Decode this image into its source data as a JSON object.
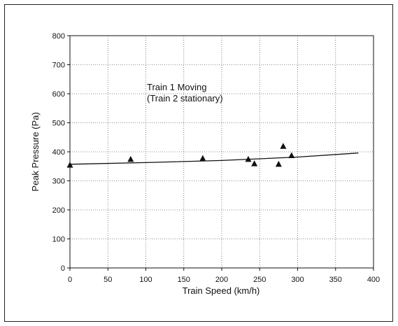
{
  "chart_data": {
    "type": "scatter",
    "xlabel": "Train Speed (km/h)",
    "ylabel": "Peak Pressure (Pa)",
    "xlim": [
      0,
      400
    ],
    "ylim": [
      0,
      800
    ],
    "x_ticks": [
      0,
      50,
      100,
      150,
      200,
      250,
      300,
      350,
      400
    ],
    "y_ticks": [
      0,
      100,
      200,
      300,
      400,
      500,
      600,
      700,
      800
    ],
    "grid": true,
    "annotations": [
      "Train 1 Moving",
      "(Train 2 stationary)"
    ],
    "series": [
      {
        "type": "scatter",
        "marker": "triangle",
        "points": [
          {
            "x": 0,
            "y": 355
          },
          {
            "x": 80,
            "y": 375
          },
          {
            "x": 175,
            "y": 378
          },
          {
            "x": 235,
            "y": 375
          },
          {
            "x": 243,
            "y": 360
          },
          {
            "x": 275,
            "y": 358
          },
          {
            "x": 281,
            "y": 420
          },
          {
            "x": 292,
            "y": 388
          }
        ]
      },
      {
        "type": "line",
        "points": [
          {
            "x": 0,
            "y": 357
          },
          {
            "x": 100,
            "y": 363
          },
          {
            "x": 200,
            "y": 370
          },
          {
            "x": 300,
            "y": 382
          },
          {
            "x": 380,
            "y": 396
          }
        ]
      }
    ]
  }
}
